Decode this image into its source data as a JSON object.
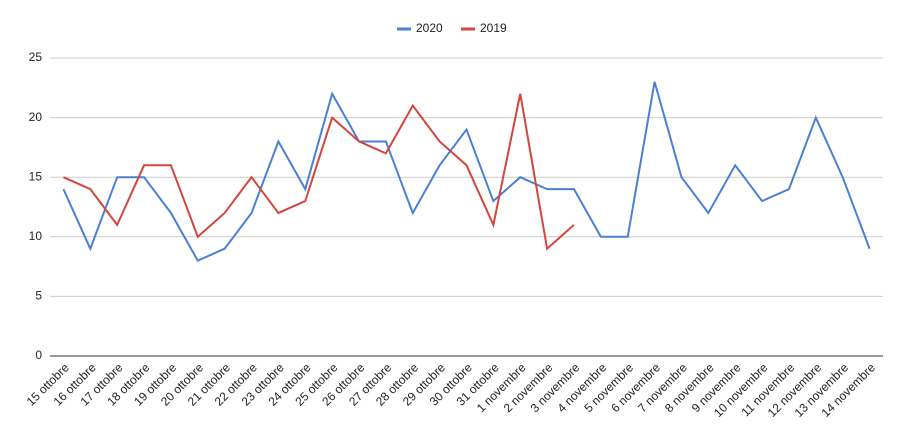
{
  "chart_data": {
    "type": "line",
    "categories": [
      "15 ottobre",
      "16 ottobre",
      "17 ottobre",
      "18 ottobre",
      "19 ottobre",
      "20 ottobre",
      "21 ottobre",
      "22 ottobre",
      "23 ottobre",
      "24 ottobre",
      "25 ottobre",
      "26 ottobre",
      "27 ottobre",
      "28 ottobre",
      "29 ottobre",
      "30 ottobre",
      "31 ottobre",
      "1 novembre",
      "2 novembre",
      "3 novembre",
      "4 novembre",
      "5 novembre",
      "6 novembre",
      "7 novembre",
      "8 novembre",
      "9 novembre",
      "10 novembre",
      "11 novembre",
      "12 novembre",
      "13 novembre",
      "14 novembre"
    ],
    "series": [
      {
        "name": "2020",
        "color": "#4a7fd6",
        "values": [
          14,
          9,
          15,
          15,
          12,
          8,
          9,
          12,
          18,
          14,
          22,
          18,
          18,
          12,
          16,
          19,
          13,
          15,
          14,
          14,
          10,
          10,
          23,
          15,
          12,
          16,
          13,
          14,
          20,
          15,
          9
        ]
      },
      {
        "name": "2019",
        "color": "#d4463c",
        "values": [
          15,
          14,
          11,
          16,
          16,
          10,
          12,
          15,
          12,
          13,
          20,
          18,
          17,
          21,
          18,
          16,
          11,
          22,
          9,
          11,
          null,
          null,
          null,
          null,
          null,
          null,
          null,
          null,
          null,
          null,
          null
        ]
      }
    ],
    "ylim": [
      0,
      25
    ],
    "yticks": [
      0,
      5,
      10,
      15,
      20,
      25
    ],
    "grid": true,
    "legend": "top"
  }
}
